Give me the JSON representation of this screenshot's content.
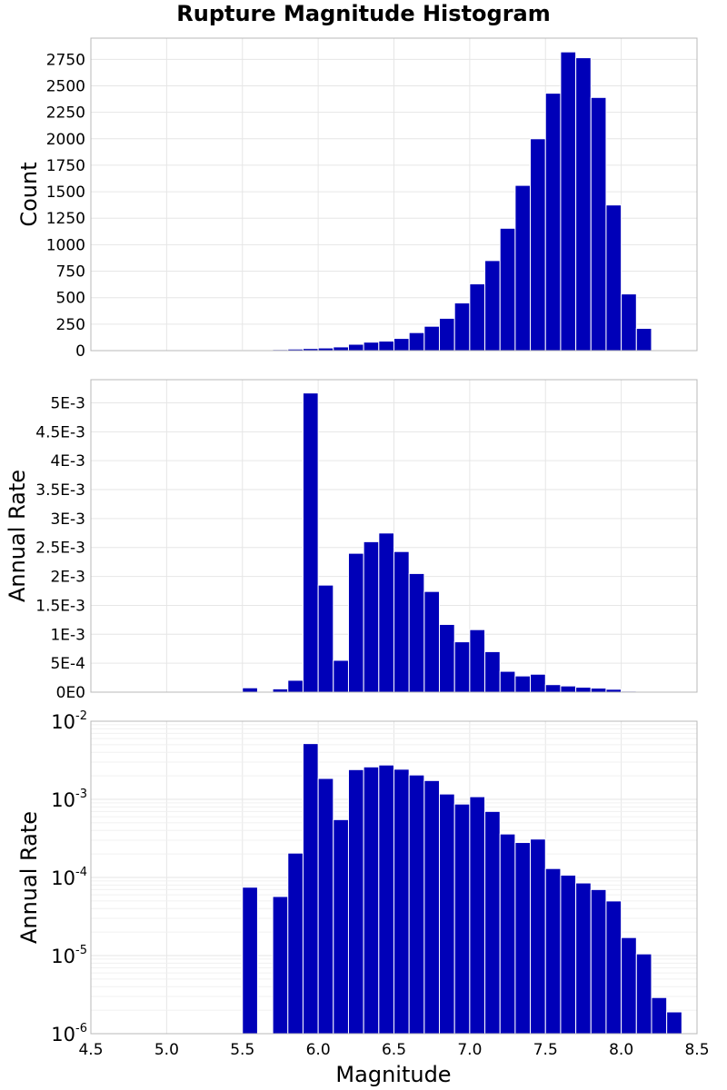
{
  "chart_data": {
    "title": "Rupture Magnitude Histogram",
    "bar_color": "#0000b8",
    "bin_width": 0.1,
    "bin_centers": [
      5.55,
      5.65,
      5.75,
      5.85,
      5.95,
      6.05,
      6.15,
      6.25,
      6.35,
      6.45,
      6.55,
      6.65,
      6.75,
      6.85,
      6.95,
      7.05,
      7.15,
      7.25,
      7.35,
      7.45,
      7.55,
      7.65,
      7.75,
      7.85,
      7.95,
      8.05,
      8.15,
      8.25,
      8.35
    ],
    "xlabel": "Magnitude",
    "xlim": [
      4.5,
      8.5
    ],
    "xticks": [
      4.5,
      5.0,
      5.5,
      6.0,
      6.5,
      7.0,
      7.5,
      8.0,
      8.5
    ],
    "xtick_labels": [
      "4.5",
      "5.0",
      "5.5",
      "6.0",
      "6.5",
      "7.0",
      "7.5",
      "8.0",
      "8.5"
    ],
    "grid": true,
    "panels": [
      {
        "type": "bar",
        "ylabel": "Count",
        "ylim": [
          0,
          2950
        ],
        "yticks": [
          0,
          250,
          500,
          750,
          1000,
          1250,
          1500,
          1750,
          2000,
          2250,
          2500,
          2750
        ],
        "ytick_labels": [
          "0",
          "250",
          "500",
          "750",
          "1000",
          "1250",
          "1500",
          "1750",
          "2000",
          "2250",
          "2500",
          "2750"
        ],
        "values": [
          5,
          4,
          10,
          15,
          20,
          25,
          35,
          60,
          80,
          90,
          115,
          170,
          230,
          305,
          450,
          630,
          850,
          1155,
          1560,
          2000,
          2430,
          2820,
          2765,
          2390,
          1375,
          535,
          210,
          0,
          0
        ]
      },
      {
        "type": "bar",
        "ylabel": "Annual Rate",
        "ylim": [
          0,
          0.0054
        ],
        "yticks": [
          0,
          0.0005,
          0.001,
          0.0015,
          0.002,
          0.0025,
          0.003,
          0.0035,
          0.004,
          0.0045,
          0.005
        ],
        "ytick_labels": [
          "0E0",
          "5E-4",
          "1E-3",
          "1.5E-3",
          "2E-3",
          "2.5E-3",
          "3E-3",
          "3.5E-3",
          "4E-3",
          "4.5E-3",
          "5E-3"
        ],
        "values": [
          7.5e-05,
          0,
          5.7e-05,
          0.000205,
          0.00517,
          0.00185,
          0.00055,
          0.0024,
          0.0026,
          0.00275,
          0.00243,
          0.00205,
          0.00174,
          0.00117,
          0.00087,
          0.00108,
          0.0007,
          0.00036,
          0.00028,
          0.00031,
          0.00013,
          0.000107,
          8.5e-05,
          7e-05,
          5e-05,
          1.7e-05,
          1.05e-05,
          2.9e-06,
          1.9e-06
        ]
      },
      {
        "type": "bar",
        "yscale": "log",
        "ylabel": "Annual Rate",
        "ylim": [
          1e-06,
          0.01
        ],
        "yticks": [
          1e-06,
          1e-05,
          0.0001,
          0.001,
          0.01
        ],
        "ytick_labels": [
          {
            "base": "10",
            "exp": "-6"
          },
          {
            "base": "10",
            "exp": "-5"
          },
          {
            "base": "10",
            "exp": "-4"
          },
          {
            "base": "10",
            "exp": "-3"
          },
          {
            "base": "10",
            "exp": "-2"
          }
        ],
        "values": [
          7.5e-05,
          0,
          5.7e-05,
          0.000205,
          0.00517,
          0.00185,
          0.00055,
          0.0024,
          0.0026,
          0.00275,
          0.00243,
          0.00205,
          0.00174,
          0.00117,
          0.00087,
          0.00108,
          0.0007,
          0.00036,
          0.00028,
          0.00031,
          0.00013,
          0.000107,
          8.5e-05,
          7e-05,
          5e-05,
          1.7e-05,
          1.05e-05,
          2.9e-06,
          1.9e-06
        ]
      }
    ]
  }
}
